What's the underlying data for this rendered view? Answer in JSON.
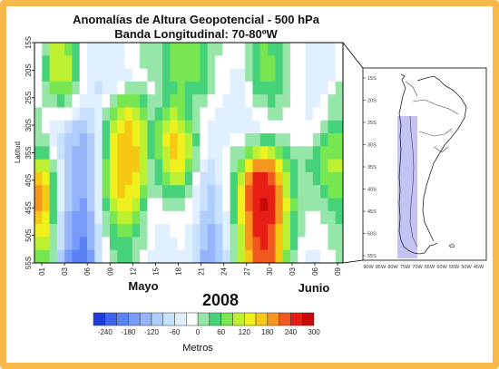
{
  "chart_data": {
    "type": "heatmap",
    "title_line1": "Anomalías de Altura Geopotencial - 500 hPa",
    "title_line2": "Banda Longitudinal: 70-80ºW",
    "ylabel": "Latitud",
    "y_ticks": [
      "15S",
      "20S",
      "25S",
      "30S",
      "35S",
      "40S",
      "45S",
      "50S",
      "55S"
    ],
    "x_ticks": [
      "01",
      "03",
      "06",
      "09",
      "12",
      "15",
      "18",
      "21",
      "24",
      "27",
      "30",
      "03",
      "06",
      "09"
    ],
    "months": [
      "Mayo",
      "Junio"
    ],
    "year": "2008",
    "colorbar": {
      "label": "Metros",
      "tick_labels": [
        "-240",
        "-180",
        "-120",
        "-60",
        "0",
        "60",
        "120",
        "180",
        "240",
        "300"
      ],
      "levels": [
        -270,
        -240,
        -210,
        -180,
        -150,
        -120,
        -90,
        -60,
        -30,
        0,
        30,
        60,
        90,
        120,
        150,
        180,
        210,
        240,
        270,
        300
      ],
      "colors": [
        "#1e3cdc",
        "#3c64f0",
        "#5a82f5",
        "#789bfa",
        "#96b4fa",
        "#afcdfa",
        "#c8e1fc",
        "#e1f0fe",
        "#ffffff",
        "#96e6aa",
        "#46d278",
        "#78e650",
        "#bef032",
        "#f0f01e",
        "#f5c814",
        "#f5961e",
        "#f05a1e",
        "#e61e14",
        "#c80a0a"
      ]
    },
    "x_range": [
      0,
      40
    ],
    "y_range_deg_south": [
      15,
      55
    ],
    "y_grid_deg_south": [
      15,
      20,
      25,
      30,
      35,
      40,
      45,
      50,
      55
    ],
    "values_m": [
      [
        -30,
        20,
        90,
        90,
        80,
        40,
        -20,
        -40,
        -50,
        -60,
        -50,
        -50,
        -30,
        -10,
        0,
        0,
        10,
        30,
        60,
        70,
        60,
        60,
        40,
        20,
        0,
        -10,
        -20,
        -20,
        0,
        40,
        60,
        50,
        30,
        10,
        -10,
        -30,
        -50,
        -60,
        -60,
        -40,
        -20
      ],
      [
        -20,
        30,
        90,
        100,
        90,
        50,
        -20,
        -40,
        -50,
        -60,
        -60,
        -50,
        -30,
        -10,
        0,
        10,
        20,
        40,
        60,
        70,
        60,
        60,
        40,
        20,
        -10,
        -20,
        -30,
        -30,
        0,
        40,
        60,
        60,
        40,
        20,
        -10,
        -30,
        -50,
        -60,
        -60,
        -40,
        -20
      ],
      [
        -10,
        40,
        90,
        100,
        90,
        50,
        -20,
        -40,
        -60,
        -60,
        -60,
        -50,
        -40,
        -20,
        -10,
        0,
        10,
        40,
        60,
        70,
        60,
        60,
        40,
        20,
        -10,
        -30,
        -40,
        -40,
        0,
        40,
        60,
        60,
        40,
        20,
        -10,
        -30,
        -50,
        -60,
        -60,
        -40,
        -10
      ],
      [
        -10,
        20,
        70,
        80,
        60,
        20,
        -30,
        -60,
        -80,
        -60,
        -40,
        -20,
        0,
        10,
        0,
        -10,
        10,
        30,
        50,
        60,
        50,
        40,
        30,
        10,
        -20,
        -30,
        -40,
        -40,
        -10,
        30,
        50,
        50,
        30,
        10,
        -10,
        -30,
        -40,
        -50,
        -40,
        -20,
        0
      ],
      [
        -10,
        0,
        20,
        30,
        20,
        -10,
        -40,
        -60,
        -60,
        -20,
        20,
        60,
        70,
        60,
        30,
        0,
        20,
        40,
        60,
        60,
        40,
        10,
        0,
        -10,
        -30,
        -40,
        -50,
        -40,
        -20,
        0,
        20,
        30,
        20,
        0,
        -20,
        -30,
        -40,
        -40,
        -20,
        0,
        10
      ],
      [
        0,
        -10,
        -20,
        -20,
        -30,
        -50,
        -70,
        -70,
        -40,
        20,
        70,
        110,
        120,
        110,
        70,
        20,
        50,
        80,
        90,
        80,
        50,
        10,
        -20,
        -30,
        -40,
        -50,
        -50,
        -50,
        -40,
        -30,
        -10,
        0,
        0,
        -10,
        -20,
        -30,
        -40,
        -30,
        -10,
        10,
        20
      ],
      [
        10,
        -10,
        -40,
        -60,
        -80,
        -100,
        -110,
        -90,
        -50,
        30,
        100,
        140,
        150,
        130,
        90,
        30,
        70,
        110,
        130,
        110,
        70,
        20,
        -20,
        -40,
        -40,
        -50,
        -50,
        -40,
        -50,
        -40,
        -30,
        -20,
        -10,
        -20,
        -30,
        -30,
        -30,
        -10,
        10,
        30,
        40
      ],
      [
        20,
        0,
        -40,
        -80,
        -100,
        -120,
        -130,
        -100,
        -60,
        40,
        120,
        150,
        160,
        140,
        100,
        30,
        80,
        120,
        150,
        130,
        90,
        30,
        -20,
        -40,
        -40,
        -40,
        -30,
        -20,
        0,
        20,
        40,
        40,
        20,
        0,
        -20,
        -20,
        -10,
        10,
        30,
        60,
        70
      ],
      [
        40,
        30,
        -20,
        -80,
        -110,
        -130,
        -140,
        -110,
        -60,
        50,
        130,
        160,
        170,
        150,
        100,
        30,
        70,
        110,
        150,
        140,
        90,
        20,
        -30,
        -50,
        -40,
        -20,
        0,
        20,
        60,
        100,
        120,
        110,
        70,
        30,
        0,
        0,
        20,
        40,
        60,
        80,
        80
      ],
      [
        100,
        90,
        20,
        -60,
        -110,
        -140,
        -150,
        -120,
        -60,
        60,
        140,
        170,
        170,
        150,
        100,
        20,
        50,
        90,
        130,
        130,
        80,
        0,
        -50,
        -70,
        -50,
        -20,
        20,
        70,
        130,
        180,
        200,
        180,
        130,
        70,
        30,
        20,
        30,
        50,
        70,
        90,
        90
      ],
      [
        150,
        130,
        40,
        -50,
        -110,
        -140,
        -150,
        -110,
        -50,
        60,
        140,
        170,
        160,
        140,
        90,
        10,
        30,
        60,
        90,
        90,
        40,
        -20,
        -70,
        -90,
        -60,
        -20,
        40,
        110,
        190,
        240,
        240,
        220,
        160,
        100,
        40,
        20,
        20,
        40,
        60,
        80,
        80
      ],
      [
        180,
        160,
        50,
        -50,
        -110,
        -150,
        -150,
        -110,
        -40,
        60,
        130,
        150,
        140,
        120,
        70,
        0,
        0,
        30,
        50,
        40,
        0,
        -40,
        -80,
        -100,
        -70,
        -20,
        50,
        130,
        210,
        260,
        260,
        240,
        180,
        110,
        50,
        20,
        10,
        20,
        40,
        60,
        60
      ],
      [
        190,
        160,
        50,
        -60,
        -120,
        -150,
        -160,
        -120,
        -50,
        40,
        110,
        130,
        120,
        90,
        40,
        -10,
        -20,
        0,
        20,
        10,
        -20,
        -50,
        -90,
        -110,
        -80,
        -30,
        40,
        130,
        210,
        260,
        270,
        250,
        190,
        120,
        60,
        20,
        0,
        0,
        20,
        40,
        40
      ],
      [
        170,
        140,
        30,
        -70,
        -130,
        -160,
        -170,
        -130,
        -60,
        20,
        80,
        100,
        90,
        60,
        20,
        -20,
        -30,
        -20,
        -10,
        -10,
        -30,
        -60,
        -100,
        -120,
        -90,
        -40,
        30,
        120,
        200,
        250,
        260,
        240,
        180,
        110,
        50,
        10,
        -10,
        -10,
        0,
        20,
        30
      ],
      [
        140,
        120,
        20,
        -80,
        -140,
        -170,
        -180,
        -140,
        -70,
        0,
        50,
        70,
        60,
        40,
        10,
        -20,
        -40,
        -40,
        -30,
        -20,
        -40,
        -70,
        -110,
        -130,
        -100,
        -50,
        20,
        110,
        190,
        240,
        250,
        230,
        170,
        100,
        40,
        0,
        -20,
        -20,
        -10,
        10,
        20
      ],
      [
        110,
        90,
        10,
        -90,
        -150,
        -180,
        -190,
        -150,
        -80,
        -20,
        30,
        50,
        40,
        20,
        0,
        -30,
        -50,
        -50,
        -40,
        -30,
        -50,
        -80,
        -120,
        -140,
        -110,
        -60,
        10,
        100,
        180,
        230,
        240,
        220,
        160,
        90,
        30,
        -10,
        -30,
        -30,
        -20,
        0,
        10
      ],
      [
        80,
        60,
        0,
        -100,
        -160,
        -190,
        -200,
        -160,
        -90,
        -30,
        20,
        40,
        30,
        10,
        -10,
        -40,
        -60,
        -60,
        -50,
        -40,
        -60,
        -90,
        -130,
        -150,
        -120,
        -70,
        0,
        90,
        170,
        220,
        230,
        210,
        150,
        80,
        20,
        -20,
        -40,
        -40,
        -30,
        -10,
        0
      ]
    ]
  },
  "map": {
    "lat_ticks": [
      "15S",
      "20S",
      "25S",
      "30S",
      "35S",
      "40S",
      "45S",
      "50S",
      "55S"
    ],
    "lon_ticks": [
      "90W",
      "85W",
      "80W",
      "75W",
      "70W",
      "65W",
      "60W",
      "55W",
      "50W",
      "45W"
    ],
    "band_color": "#c4c4f4"
  }
}
